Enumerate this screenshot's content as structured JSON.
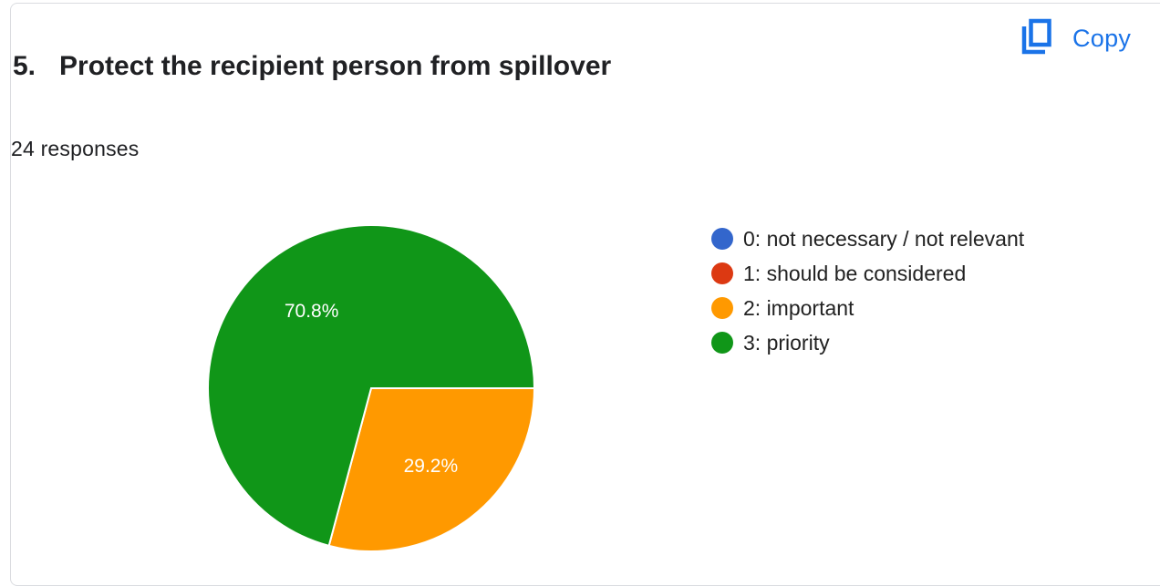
{
  "header": {
    "question_number": "5.",
    "question_title": "Protect the recipient person from spillover",
    "copy_label": "Copy",
    "responses": "24 responses"
  },
  "chart_data": {
    "type": "pie",
    "title": "Protect the recipient person from spillover",
    "categories": [
      "0: not necessary / not relevant",
      "1: should be considered",
      "2: important",
      "3: priority"
    ],
    "values": [
      0,
      0,
      7,
      17
    ],
    "percent_labels": [
      "",
      "",
      "29.2%",
      "70.8%"
    ],
    "colors": [
      "#3366cc",
      "#dc3912",
      "#ff9900",
      "#109618"
    ],
    "legend_position": "right"
  },
  "colors": {
    "accent": "#1a73e8"
  },
  "icons": {
    "copy": "copy-icon"
  }
}
